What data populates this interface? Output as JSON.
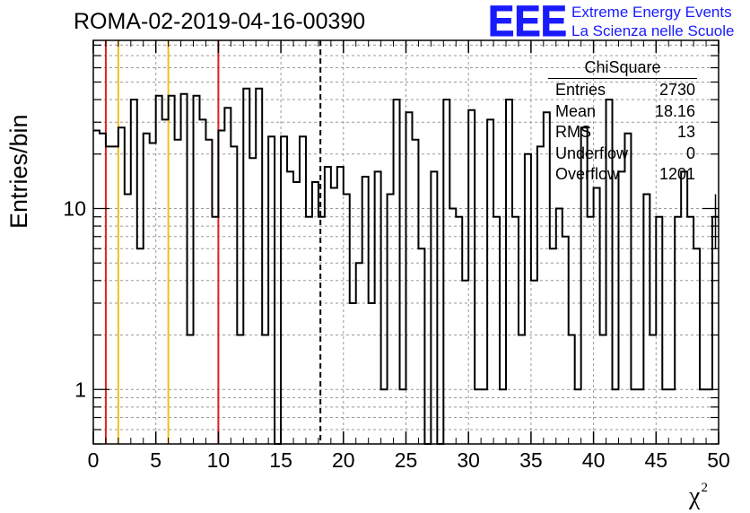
{
  "header": {
    "title": "ROMA-02-2019-04-16-00390",
    "logo_text": "EEE",
    "org_line1": "Extreme Energy Events",
    "org_line2": "La Scienza nelle Scuole",
    "brand_color": "#1a1aff"
  },
  "stats": {
    "name": "ChiSquare",
    "rows": [
      {
        "label": "Entries",
        "value": "2730"
      },
      {
        "label": "Mean",
        "value": "18.16"
      },
      {
        "label": "RMS",
        "value": "13"
      },
      {
        "label": "Underflow",
        "value": "0"
      },
      {
        "label": "Overflow",
        "value": "1201"
      }
    ]
  },
  "chart_data": {
    "type": "bar",
    "style": "histogram-step",
    "xlabel": "χ",
    "xlabel_superscript": "2",
    "ylabel": "Entries/bin",
    "xlim": [
      0,
      50
    ],
    "ylim": [
      0.5,
      85
    ],
    "yscale": "log",
    "grid": true,
    "bin_width": 0.5,
    "bin_start": 0,
    "x_ticks": [
      0,
      5,
      10,
      15,
      20,
      25,
      30,
      35,
      40,
      45,
      50
    ],
    "y_ticks": [
      1,
      10
    ],
    "values": [
      27,
      26,
      22,
      22,
      28,
      12,
      40,
      6,
      26,
      23,
      42,
      31,
      42,
      24,
      43,
      2,
      42,
      31,
      24,
      9,
      27,
      36,
      22,
      2,
      46,
      19,
      46,
      2,
      25,
      0,
      25,
      16,
      14,
      25,
      9,
      14,
      9,
      17,
      13,
      17,
      12,
      3,
      5,
      15,
      3,
      16,
      1,
      12,
      40,
      1,
      34,
      24,
      6,
      0,
      16,
      0,
      40,
      10,
      9,
      4,
      35,
      1,
      1,
      31,
      9,
      1,
      40,
      9,
      2,
      20,
      4,
      22,
      34,
      6,
      10,
      7,
      2,
      1,
      28,
      9,
      13,
      2,
      40,
      1,
      16,
      26,
      1,
      1,
      12,
      2,
      9,
      1,
      1,
      9,
      16,
      9,
      6,
      1,
      1,
      9
    ],
    "series": [
      {
        "name": "ChiSquare",
        "values": "see values"
      }
    ],
    "reference_lines": [
      {
        "x": 1,
        "color": "#e02020",
        "style": "solid"
      },
      {
        "x": 2,
        "color": "#f5bd1f",
        "style": "solid"
      },
      {
        "x": 6,
        "color": "#f5bd1f",
        "style": "solid"
      },
      {
        "x": 10,
        "color": "#e02020",
        "style": "solid"
      },
      {
        "x": 18.16,
        "color": "#000000",
        "style": "dashed"
      }
    ]
  }
}
